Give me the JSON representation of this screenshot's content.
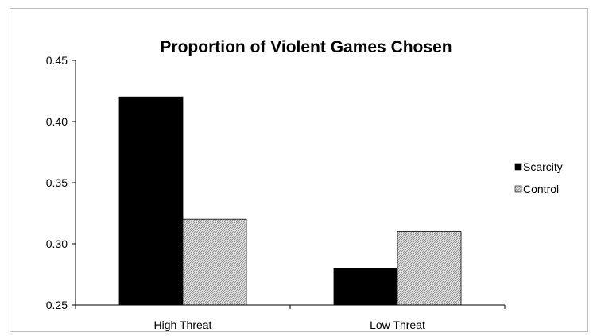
{
  "chart_data": {
    "type": "bar",
    "title": "Proportion of Violent Games Chosen",
    "xlabel": "",
    "ylabel": "",
    "categories": [
      "High Threat",
      "Low Threat"
    ],
    "series": [
      {
        "name": "Scarcity",
        "values": [
          0.42,
          0.28
        ],
        "color": "#000000",
        "pattern": "solid"
      },
      {
        "name": "Control",
        "values": [
          0.32,
          0.31
        ],
        "color": "#c8c8c8",
        "pattern": "hatched"
      }
    ],
    "ylim": [
      0.25,
      0.45
    ],
    "yticks": [
      "0.25",
      "0.30",
      "0.35",
      "0.40",
      "0.45"
    ],
    "ytick_values": [
      0.25,
      0.3,
      0.35,
      0.4,
      0.45
    ],
    "grid": false,
    "legend": "right"
  }
}
